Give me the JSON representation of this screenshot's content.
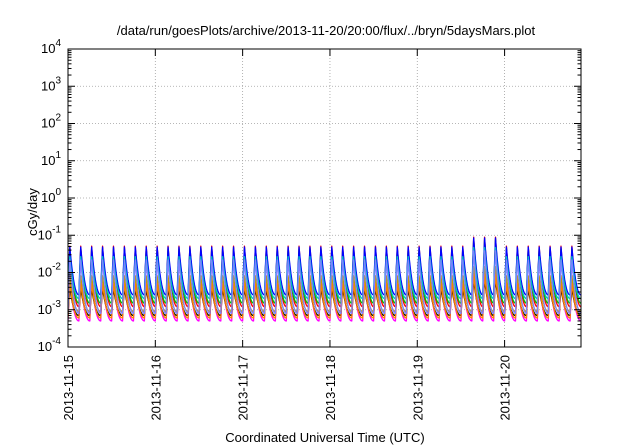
{
  "chart_data": {
    "type": "line",
    "title": "/data/run/goesPlots/archive/2013-11-20/20:00/flux/../bryn/5daysMars.plot",
    "xlabel": "Coordinated Universal Time (UTC)",
    "ylabel": "cGy/day",
    "yscale": "log",
    "ylim": [
      0.0001,
      10000
    ],
    "xlim": [
      "2013-11-15",
      "2013-11-20 21:00"
    ],
    "x_ticks": [
      "2013-11-15",
      "2013-11-16",
      "2013-11-17",
      "2013-11-18",
      "2013-11-19",
      "2013-11-20"
    ],
    "y_ticks": [
      {
        "base": "10",
        "exp": "-4",
        "value": 0.0001
      },
      {
        "base": "10",
        "exp": "-3",
        "value": 0.001
      },
      {
        "base": "10",
        "exp": "-2",
        "value": 0.01
      },
      {
        "base": "10",
        "exp": "-1",
        "value": 0.1
      },
      {
        "base": "10",
        "exp": "0",
        "value": 1
      },
      {
        "base": "10",
        "exp": "1",
        "value": 10
      },
      {
        "base": "10",
        "exp": "2",
        "value": 100
      },
      {
        "base": "10",
        "exp": "3",
        "value": 1000
      },
      {
        "base": "10",
        "exp": "4",
        "value": 10000
      }
    ],
    "grid": true,
    "legend": "none",
    "pattern": {
      "period_hours": 3,
      "days": 5.875,
      "enhanced_from_day": 4.6,
      "enhanced_until_day": 5.0,
      "enhancement_factor": 1.8
    },
    "series": [
      {
        "color": "#ff0000",
        "peak": 0.06,
        "trough": 0.0012
      },
      {
        "color": "#00c000",
        "peak": 0.05,
        "trough": 0.0015
      },
      {
        "color": "#0000ff",
        "peak": 0.055,
        "trough": 0.0025
      },
      {
        "color": "#ff00ff",
        "peak": 0.006,
        "trough": 0.0005
      },
      {
        "color": "#00c0c0",
        "peak": 0.03,
        "trough": 0.002
      },
      {
        "color": "#c0a000",
        "peak": 0.009,
        "trough": 0.0009
      },
      {
        "color": "#000000",
        "peak": 0.004,
        "trough": 0.0007
      },
      {
        "color": "#ff8000",
        "peak": 0.0055,
        "trough": 0.0006
      },
      {
        "color": "#8080ff",
        "peak": 0.025,
        "trough": 0.0008
      }
    ]
  }
}
